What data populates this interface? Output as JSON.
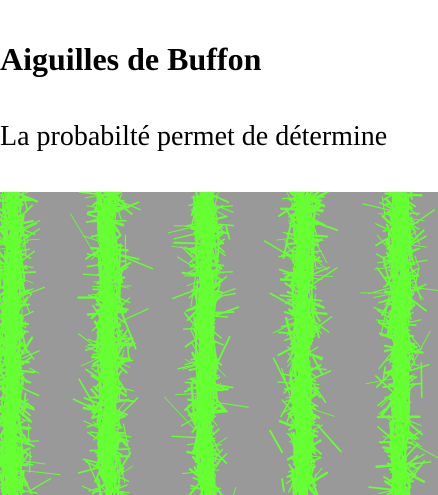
{
  "page": {
    "title": "Aiguilles de Buffon",
    "intro": "La probabilté permet de détermine"
  },
  "colors": {
    "background": "#ffffff",
    "text": "#000000",
    "canvas_background": "#999999",
    "needle": "#66ff33"
  },
  "simulation": {
    "strip_count": 5
  }
}
